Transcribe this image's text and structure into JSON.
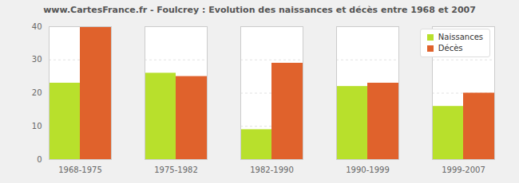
{
  "chart_data": {
    "type": "bar",
    "title": "www.CartesFrance.fr - Foulcrey : Evolution des naissances et décès entre 1968 et 2007",
    "categories": [
      "1968-1975",
      "1975-1982",
      "1982-1990",
      "1990-1999",
      "1999-2007"
    ],
    "series": [
      {
        "name": "Naissances",
        "color": "#b8e02c",
        "values": [
          23,
          26,
          9,
          22,
          16
        ]
      },
      {
        "name": "Décès",
        "color": "#e0622c",
        "values": [
          40,
          25,
          29,
          23,
          20
        ]
      }
    ],
    "ylim": [
      0,
      40
    ],
    "yticks": [
      0,
      10,
      20,
      30,
      40
    ],
    "grid": true,
    "legend": "top-right"
  }
}
